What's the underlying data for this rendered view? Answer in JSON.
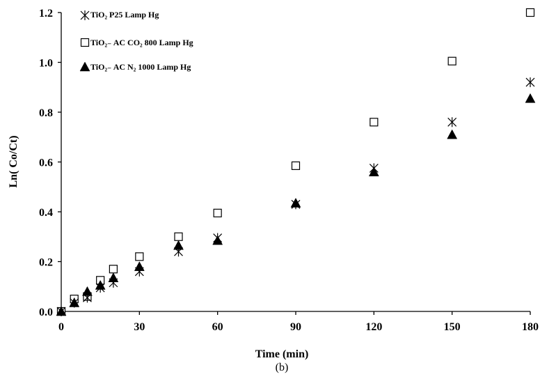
{
  "chart_data": {
    "type": "scatter",
    "xlabel": "Time (min)",
    "ylabel": "Ln( Co/Ct)",
    "caption": "(b)",
    "xlim": [
      0,
      180
    ],
    "ylim": [
      0,
      1.2
    ],
    "x_ticks": [
      "0",
      "30",
      "60",
      "90",
      "120",
      "150",
      "180"
    ],
    "y_ticks": [
      "0.0",
      "0.2",
      "0.4",
      "0.6",
      "0.8",
      "1.0",
      "1.2"
    ],
    "grid": false,
    "legend_position": "top-left",
    "series": [
      {
        "name": "TiO₂ P25 Lamp Hg",
        "marker": "asterisk",
        "x": [
          0,
          5,
          10,
          15,
          20,
          30,
          45,
          60,
          90,
          120,
          150,
          180
        ],
        "y": [
          0.0,
          0.035,
          0.055,
          0.095,
          0.115,
          0.16,
          0.24,
          0.295,
          0.43,
          0.575,
          0.76,
          0.92
        ]
      },
      {
        "name": "TiO₂₋ AC CO₂ 800 Lamp Hg",
        "marker": "square",
        "x": [
          0,
          5,
          10,
          15,
          20,
          30,
          45,
          60,
          90,
          120,
          150,
          180
        ],
        "y": [
          0.0,
          0.05,
          0.06,
          0.125,
          0.17,
          0.22,
          0.3,
          0.395,
          0.585,
          0.76,
          1.005,
          1.2
        ]
      },
      {
        "name": "TiO₂₋ AC N₂ 1000 Lamp Hg",
        "marker": "triangle",
        "x": [
          0,
          5,
          10,
          15,
          20,
          30,
          45,
          60,
          90,
          120,
          150,
          180
        ],
        "y": [
          0.0,
          0.035,
          0.08,
          0.105,
          0.135,
          0.18,
          0.265,
          0.285,
          0.435,
          0.56,
          0.71,
          0.855
        ]
      }
    ]
  }
}
